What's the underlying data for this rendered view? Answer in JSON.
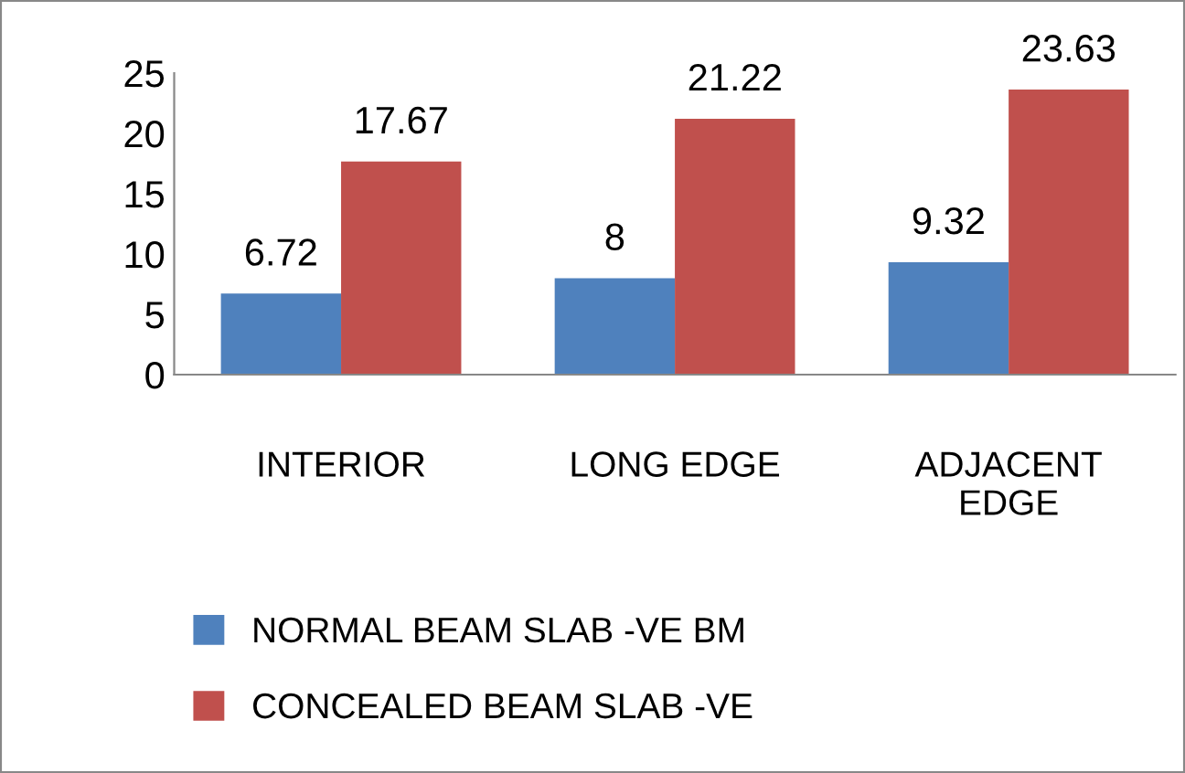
{
  "chart_data": {
    "type": "bar",
    "categories": [
      "INTERIOR",
      "LONG EDGE",
      "ADJACENT EDGE"
    ],
    "series": [
      {
        "name": "NORMAL BEAM SLAB -VE BM",
        "color": "#4f81bd",
        "values": [
          6.72,
          8,
          9.32
        ]
      },
      {
        "name": "CONCEALED BEAM SLAB -VE",
        "color": "#c0504d",
        "values": [
          17.67,
          21.22,
          23.63
        ]
      }
    ],
    "ylim": [
      0,
      25
    ],
    "yticks": [
      0,
      5,
      10,
      15,
      20,
      25
    ],
    "grid": false,
    "legend": "bottom",
    "data_labels": true
  }
}
